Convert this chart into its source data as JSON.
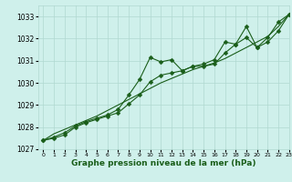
{
  "x": [
    0,
    1,
    2,
    3,
    4,
    5,
    6,
    7,
    8,
    9,
    10,
    11,
    12,
    13,
    14,
    15,
    16,
    17,
    18,
    19,
    20,
    21,
    22,
    23
  ],
  "series1": [
    1027.4,
    1027.55,
    1027.75,
    1028.05,
    1028.25,
    1028.4,
    1028.55,
    1028.8,
    1029.45,
    1030.15,
    1031.15,
    1030.95,
    1031.05,
    1030.55,
    1030.75,
    1030.85,
    1031.05,
    1031.85,
    1031.75,
    1032.55,
    1031.6,
    1032.05,
    1032.75,
    1033.1
  ],
  "series2": [
    1027.4,
    1027.5,
    1027.65,
    1028.0,
    1028.2,
    1028.35,
    1028.5,
    1028.65,
    1029.05,
    1029.45,
    1030.05,
    1030.35,
    1030.45,
    1030.55,
    1030.75,
    1030.75,
    1030.85,
    1031.35,
    1031.75,
    1032.05,
    1031.6,
    1031.85,
    1032.35,
    1033.1
  ],
  "trend": [
    1027.4,
    1027.7,
    1027.9,
    1028.1,
    1028.3,
    1028.5,
    1028.75,
    1029.0,
    1029.25,
    1029.5,
    1029.75,
    1030.0,
    1030.2,
    1030.4,
    1030.6,
    1030.75,
    1030.9,
    1031.1,
    1031.35,
    1031.6,
    1031.85,
    1032.1,
    1032.55,
    1033.1
  ],
  "line_color": "#1a5e1a",
  "bg_color": "#cff0eb",
  "grid_color": "#b0d8d0",
  "xlabel": "Graphe pression niveau de la mer (hPa)",
  "ylim": [
    1027.0,
    1033.5
  ],
  "xlim": [
    -0.5,
    23
  ],
  "yticks": [
    1027,
    1028,
    1029,
    1030,
    1031,
    1032,
    1033
  ],
  "xticks": [
    0,
    1,
    2,
    3,
    4,
    5,
    6,
    7,
    8,
    9,
    10,
    11,
    12,
    13,
    14,
    15,
    16,
    17,
    18,
    19,
    20,
    21,
    22,
    23
  ],
  "marker_size": 2.5,
  "line_width": 0.8,
  "xlabel_fontsize": 6.5,
  "ytick_fontsize": 5.5,
  "xtick_fontsize": 4.5
}
